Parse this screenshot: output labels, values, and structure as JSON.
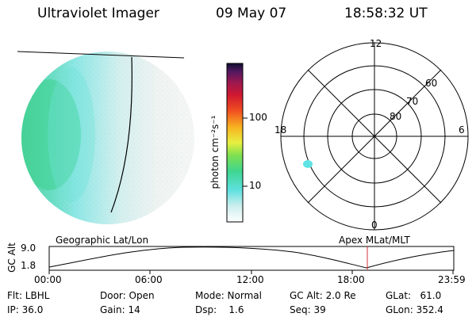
{
  "header": {
    "instrument": "Ultraviolet Imager",
    "date": "09 May 07",
    "time": "18:58:32 UT"
  },
  "colorbar": {
    "unit_label": "photon cm⁻²s⁻¹",
    "ticks": [
      "100",
      "10"
    ]
  },
  "polar_plot": {
    "mlt_labels": {
      "top": "12",
      "left": "18",
      "right": "6",
      "bottom": "0"
    },
    "lat_labels": [
      "60",
      "70",
      "80"
    ]
  },
  "timeline": {
    "left_label": "Geographic Lat/Lon",
    "right_label": "Apex MLat/MLT",
    "y_axis_label": "GC Alt",
    "y_ticks": [
      "9.0",
      "1.8"
    ],
    "x_ticks": [
      "00:00",
      "06:00",
      "12:00",
      "18:00",
      "23:59"
    ]
  },
  "status": {
    "flt": "Flt: LBHL",
    "ip": "IP: 36.0",
    "door": "Door: Open",
    "gain": "Gain: 14",
    "mode": "Mode: Normal",
    "dsp": "Dsp:    1.6",
    "gcalt": "GC Alt: 2.0 Re",
    "seq": "Seq: 39",
    "glat": "GLat:   61.0",
    "glon": "GLon: 352.4"
  },
  "colors": {
    "earth_dim": "#e6ece9",
    "aurora_cyan": "#5fe3e3",
    "aurora_green": "#3fd690",
    "marker_line": "#d0303a"
  }
}
